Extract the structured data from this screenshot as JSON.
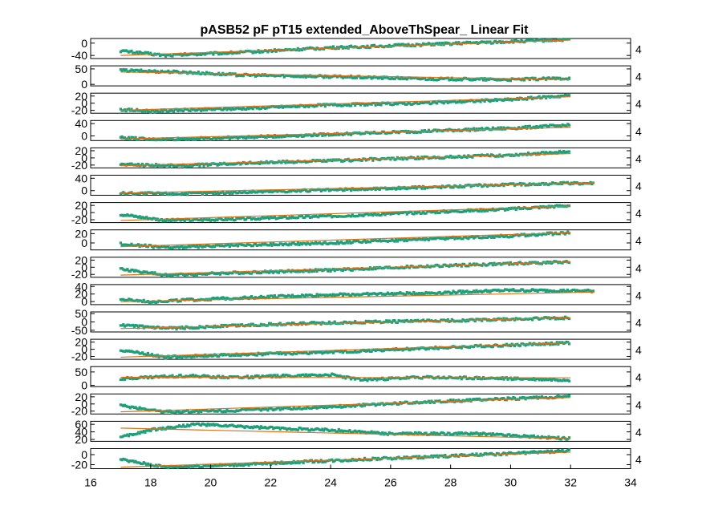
{
  "chart_data": {
    "type": "scatter",
    "title": "pASB52 pF pT15 extended_AboveThSpear_ Linear Fit",
    "xlim": [
      16,
      34
    ],
    "xticks": [
      16,
      18,
      20,
      22,
      24,
      26,
      28,
      30,
      32,
      34
    ],
    "xlabel": "",
    "series_colors": {
      "data": "#1f9e78",
      "fit": "#d9731c"
    },
    "right_tick_label": "4",
    "grid": false,
    "panels": [
      {
        "yticks": [
          "0",
          "-40"
        ],
        "ylim": [
          -50,
          15
        ],
        "fit": [
          -40,
          10
        ],
        "data": [
          [
            17,
            -25
          ],
          [
            18.5,
            -40
          ],
          [
            21,
            -30
          ],
          [
            24,
            -15
          ],
          [
            27,
            -5
          ],
          [
            30,
            5
          ],
          [
            32,
            12
          ]
        ]
      },
      {
        "yticks": [
          "50",
          "0"
        ],
        "ylim": [
          -5,
          60
        ],
        "fit": [
          40,
          15
        ],
        "data": [
          [
            17,
            45
          ],
          [
            19,
            40
          ],
          [
            21,
            30
          ],
          [
            24,
            25
          ],
          [
            27,
            18
          ],
          [
            30,
            15
          ],
          [
            32,
            20
          ]
        ]
      },
      {
        "yticks": [
          "20",
          "0",
          "-20"
        ],
        "ylim": [
          -28,
          28
        ],
        "fit": [
          -20,
          18
        ],
        "data": [
          [
            17,
            -18
          ],
          [
            18,
            -22
          ],
          [
            21,
            -15
          ],
          [
            24,
            -5
          ],
          [
            27,
            0
          ],
          [
            30,
            10
          ],
          [
            32,
            22
          ]
        ]
      },
      {
        "yticks": [
          "40",
          "0"
        ],
        "ylim": [
          -15,
          50
        ],
        "fit": [
          -10,
          28
        ],
        "data": [
          [
            17,
            -5
          ],
          [
            18,
            -12
          ],
          [
            21,
            -5
          ],
          [
            24,
            5
          ],
          [
            27,
            15
          ],
          [
            30,
            25
          ],
          [
            32,
            35
          ]
        ]
      },
      {
        "yticks": [
          "20",
          "0",
          "-20"
        ],
        "ylim": [
          -28,
          28
        ],
        "fit": [
          -22,
          12
        ],
        "data": [
          [
            17,
            -18
          ],
          [
            19,
            -22
          ],
          [
            21,
            -15
          ],
          [
            24,
            -8
          ],
          [
            27,
            0
          ],
          [
            30,
            8
          ],
          [
            32,
            18
          ]
        ]
      },
      {
        "yticks": [
          "40",
          "0"
        ],
        "ylim": [
          -15,
          50
        ],
        "fit": [
          -8,
          25
        ],
        "data": [
          [
            17,
            -8
          ],
          [
            19,
            -10
          ],
          [
            21,
            -5
          ],
          [
            24,
            2
          ],
          [
            27,
            10
          ],
          [
            30,
            20
          ],
          [
            32.8,
            25
          ]
        ]
      },
      {
        "yticks": [
          "20",
          "0",
          "-20"
        ],
        "ylim": [
          -28,
          28
        ],
        "fit": [
          -22,
          18
        ],
        "data": [
          [
            17,
            -5
          ],
          [
            18.5,
            -22
          ],
          [
            21,
            -18
          ],
          [
            24,
            -10
          ],
          [
            27,
            0
          ],
          [
            30,
            10
          ],
          [
            32,
            20
          ]
        ]
      },
      {
        "yticks": [
          "20",
          "0"
        ],
        "ylim": [
          -15,
          28
        ],
        "fit": [
          -8,
          22
        ],
        "data": [
          [
            17,
            -2
          ],
          [
            18.5,
            -10
          ],
          [
            21,
            -5
          ],
          [
            24,
            0
          ],
          [
            27,
            8
          ],
          [
            30,
            15
          ],
          [
            32,
            22
          ]
        ]
      },
      {
        "yticks": [
          "20",
          "0",
          "-20"
        ],
        "ylim": [
          -28,
          28
        ],
        "fit": [
          -22,
          15
        ],
        "data": [
          [
            17,
            -5
          ],
          [
            18.5,
            -22
          ],
          [
            21,
            -15
          ],
          [
            24,
            -8
          ],
          [
            27,
            2
          ],
          [
            30,
            10
          ],
          [
            32,
            15
          ]
        ]
      },
      {
        "yticks": [
          "40",
          "20",
          "0"
        ],
        "ylim": [
          -8,
          45
        ],
        "fit": [
          0,
          25
        ],
        "data": [
          [
            17,
            5
          ],
          [
            18,
            0
          ],
          [
            21,
            10
          ],
          [
            24,
            18
          ],
          [
            27,
            22
          ],
          [
            30,
            30
          ],
          [
            32.8,
            28
          ]
        ]
      },
      {
        "yticks": [
          "50",
          "0",
          "-50"
        ],
        "ylim": [
          -60,
          60
        ],
        "fit": [
          -40,
          25
        ],
        "data": [
          [
            17,
            -20
          ],
          [
            18.5,
            -40
          ],
          [
            21,
            -20
          ],
          [
            24,
            -5
          ],
          [
            27,
            5
          ],
          [
            30,
            15
          ],
          [
            32,
            25
          ]
        ]
      },
      {
        "yticks": [
          "20",
          "0",
          "-20"
        ],
        "ylim": [
          -28,
          28
        ],
        "fit": [
          -22,
          18
        ],
        "data": [
          [
            17,
            -2
          ],
          [
            18.5,
            -22
          ],
          [
            21,
            -15
          ],
          [
            24,
            -8
          ],
          [
            27,
            2
          ],
          [
            30,
            12
          ],
          [
            32,
            18
          ]
        ]
      },
      {
        "yticks": [
          "50",
          "0"
        ],
        "ylim": [
          -5,
          70
        ],
        "fit": [
          30,
          28
        ],
        "data": [
          [
            17,
            25
          ],
          [
            19,
            35
          ],
          [
            21,
            30
          ],
          [
            24,
            40
          ],
          [
            25,
            20
          ],
          [
            27,
            30
          ],
          [
            30,
            25
          ],
          [
            32,
            20
          ]
        ]
      },
      {
        "yticks": [
          "20",
          "0",
          "-20"
        ],
        "ylim": [
          -28,
          28
        ],
        "fit": [
          -22,
          18
        ],
        "data": [
          [
            17,
            -5
          ],
          [
            18.5,
            -22
          ],
          [
            21,
            -18
          ],
          [
            24,
            -8
          ],
          [
            27,
            5
          ],
          [
            30,
            15
          ],
          [
            32,
            20
          ]
        ]
      },
      {
        "yticks": [
          "60",
          "40",
          "20"
        ],
        "ylim": [
          15,
          68
        ],
        "fit": [
          50,
          22
        ],
        "data": [
          [
            17,
            25
          ],
          [
            18,
            45
          ],
          [
            19.5,
            60
          ],
          [
            22,
            50
          ],
          [
            24,
            45
          ],
          [
            26,
            35
          ],
          [
            29,
            35
          ],
          [
            32,
            22
          ]
        ]
      },
      {
        "yticks": [
          "0",
          "-20"
        ],
        "ylim": [
          -28,
          12
        ],
        "fit": [
          -25,
          5
        ],
        "data": [
          [
            17,
            -10
          ],
          [
            18.5,
            -25
          ],
          [
            21,
            -20
          ],
          [
            24,
            -12
          ],
          [
            27,
            -5
          ],
          [
            30,
            2
          ],
          [
            32,
            8
          ]
        ]
      }
    ]
  }
}
